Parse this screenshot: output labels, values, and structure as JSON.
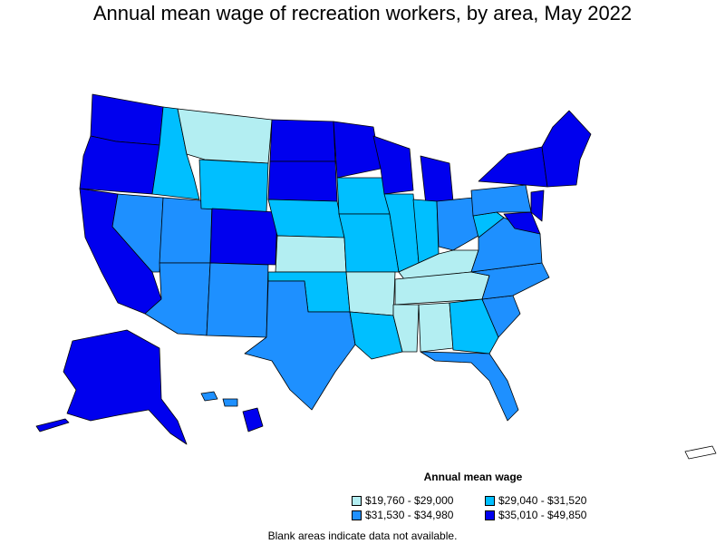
{
  "title": "Annual mean wage of recreation workers, by area, May 2022",
  "legend": {
    "title": "Annual mean wage",
    "items": [
      {
        "label": "$19,760 - $29,000",
        "color": "#b3eef2"
      },
      {
        "label": "$29,040 - $31,520",
        "color": "#00bfff"
      },
      {
        "label": "$31,530 - $34,980",
        "color": "#1e90ff"
      },
      {
        "label": "$35,010 - $49,850",
        "color": "#0000ee"
      }
    ]
  },
  "footnote": "Blank areas indicate data not available."
}
